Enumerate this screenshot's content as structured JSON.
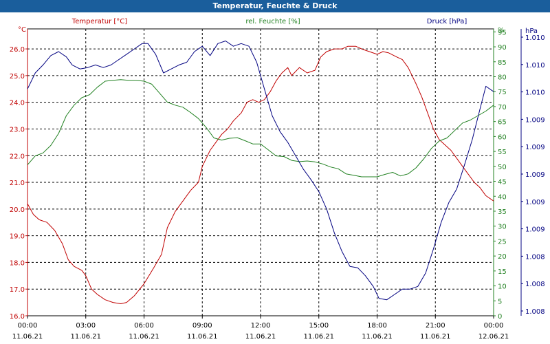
{
  "window": {
    "title": "Temperatur, Feuchte & Druck"
  },
  "colors": {
    "temp": "#c00000",
    "hum": "#208020",
    "press": "#000080",
    "grid": "#000000",
    "title_bg": "#1a5e9c"
  },
  "chart_data": {
    "type": "line",
    "title": "Temperatur, Feuchte & Druck",
    "grid": true,
    "x_ticks": [
      {
        "time": "00:00",
        "date": "11.06.21",
        "h": 0
      },
      {
        "time": "03:00",
        "date": "11.06.21",
        "h": 3
      },
      {
        "time": "06:00",
        "date": "11.06.21",
        "h": 6
      },
      {
        "time": "09:00",
        "date": "11.06.21",
        "h": 9
      },
      {
        "time": "12:00",
        "date": "11.06.21",
        "h": 12
      },
      {
        "time": "15:00",
        "date": "11.06.21",
        "h": 15
      },
      {
        "time": "18:00",
        "date": "11.06.21",
        "h": 18
      },
      {
        "time": "21:00",
        "date": "11.06.21",
        "h": 21
      },
      {
        "time": "00:00",
        "date": "12.06.21",
        "h": 24
      }
    ],
    "xlim": [
      0,
      24
    ],
    "axes": {
      "temp": {
        "label": "Temperatur [°C]",
        "unit": "°C",
        "min": 16.0,
        "max": 26.75,
        "ticks": [
          "16.0",
          "17.0",
          "18.0",
          "19.0",
          "20.0",
          "21.0",
          "22.0",
          "23.0",
          "24.0",
          "25.0",
          "26.0"
        ]
      },
      "hum": {
        "label": "rel. Feuchte [%]",
        "unit": "%",
        "min": 0,
        "max": 96,
        "ticks": [
          "0",
          "5",
          "10",
          "15",
          "20",
          "25",
          "30",
          "35",
          "40",
          "45",
          "50",
          "55",
          "60",
          "65",
          "70",
          "75",
          "80",
          "85",
          "90",
          "95"
        ]
      },
      "press": {
        "label": "Druck [hPa]",
        "unit": "hPa",
        "min": 1008.0,
        "max": 1010.15,
        "ticks": [
          "1.008",
          "1.008",
          "1.008",
          "1.009",
          "1.009",
          "1.009",
          "1.009",
          "1.009",
          "1.010",
          "1.010",
          "1.010"
        ]
      }
    },
    "series": [
      {
        "name": "Temperatur [°C]",
        "axis": "temp",
        "color": "#c00000",
        "points": [
          [
            0,
            20.2
          ],
          [
            0.3,
            19.8
          ],
          [
            0.6,
            19.6
          ],
          [
            1.0,
            19.5
          ],
          [
            1.4,
            19.2
          ],
          [
            1.8,
            18.7
          ],
          [
            2.1,
            18.1
          ],
          [
            2.4,
            17.85
          ],
          [
            2.8,
            17.7
          ],
          [
            3.0,
            17.5
          ],
          [
            3.3,
            17.0
          ],
          [
            3.6,
            16.8
          ],
          [
            4.0,
            16.6
          ],
          [
            4.4,
            16.5
          ],
          [
            4.8,
            16.45
          ],
          [
            5.1,
            16.5
          ],
          [
            5.5,
            16.75
          ],
          [
            6.0,
            17.2
          ],
          [
            6.5,
            17.8
          ],
          [
            6.9,
            18.3
          ],
          [
            7.2,
            19.3
          ],
          [
            7.6,
            19.9
          ],
          [
            8.0,
            20.3
          ],
          [
            8.4,
            20.7
          ],
          [
            8.8,
            21.0
          ],
          [
            9.0,
            21.6
          ],
          [
            9.4,
            22.2
          ],
          [
            9.7,
            22.5
          ],
          [
            10.0,
            22.8
          ],
          [
            10.3,
            23.0
          ],
          [
            10.6,
            23.3
          ],
          [
            11.0,
            23.6
          ],
          [
            11.3,
            24.0
          ],
          [
            11.6,
            24.1
          ],
          [
            11.9,
            24.0
          ],
          [
            12.2,
            24.1
          ],
          [
            12.5,
            24.4
          ],
          [
            12.8,
            24.8
          ],
          [
            13.1,
            25.1
          ],
          [
            13.4,
            25.3
          ],
          [
            13.6,
            25.0
          ],
          [
            14.0,
            25.3
          ],
          [
            14.4,
            25.1
          ],
          [
            14.8,
            25.2
          ],
          [
            15.1,
            25.7
          ],
          [
            15.4,
            25.9
          ],
          [
            15.8,
            26.0
          ],
          [
            16.2,
            26.0
          ],
          [
            16.5,
            26.1
          ],
          [
            16.9,
            26.1
          ],
          [
            17.2,
            26.0
          ],
          [
            17.6,
            25.9
          ],
          [
            18.0,
            25.8
          ],
          [
            18.3,
            25.9
          ],
          [
            18.6,
            25.85
          ],
          [
            19.0,
            25.7
          ],
          [
            19.3,
            25.6
          ],
          [
            19.6,
            25.3
          ],
          [
            20.0,
            24.7
          ],
          [
            20.3,
            24.2
          ],
          [
            20.6,
            23.6
          ],
          [
            20.9,
            23.0
          ],
          [
            21.2,
            22.6
          ],
          [
            21.5,
            22.4
          ],
          [
            21.8,
            22.2
          ],
          [
            22.1,
            21.9
          ],
          [
            22.4,
            21.6
          ],
          [
            22.7,
            21.3
          ],
          [
            23.0,
            21.0
          ],
          [
            23.3,
            20.8
          ],
          [
            23.6,
            20.5
          ],
          [
            24.0,
            20.3
          ]
        ]
      },
      {
        "name": "rel. Feuchte [%]",
        "axis": "hum",
        "color": "#208020",
        "points": [
          [
            0,
            50.5
          ],
          [
            0.4,
            53.5
          ],
          [
            0.8,
            54.5
          ],
          [
            1.2,
            57
          ],
          [
            1.6,
            61
          ],
          [
            2.0,
            67
          ],
          [
            2.4,
            70.5
          ],
          [
            2.8,
            73
          ],
          [
            3.2,
            74
          ],
          [
            3.6,
            76.5
          ],
          [
            4.0,
            78.5
          ],
          [
            4.4,
            78.8
          ],
          [
            4.8,
            79.0
          ],
          [
            5.2,
            78.8
          ],
          [
            5.6,
            78.8
          ],
          [
            6.0,
            78.5
          ],
          [
            6.4,
            77.5
          ],
          [
            6.8,
            74.5
          ],
          [
            7.2,
            71.5
          ],
          [
            7.6,
            70.5
          ],
          [
            8.0,
            69.8
          ],
          [
            8.4,
            68.0
          ],
          [
            8.8,
            66.0
          ],
          [
            9.2,
            63.0
          ],
          [
            9.6,
            59.5
          ],
          [
            10.0,
            58.8
          ],
          [
            10.4,
            59.4
          ],
          [
            10.8,
            59.6
          ],
          [
            11.2,
            58.6
          ],
          [
            11.6,
            57.5
          ],
          [
            12.0,
            57.5
          ],
          [
            12.4,
            55.5
          ],
          [
            12.8,
            53.5
          ],
          [
            13.2,
            53.3
          ],
          [
            13.6,
            52.0
          ],
          [
            14.0,
            51.6
          ],
          [
            14.4,
            51.8
          ],
          [
            14.8,
            51.5
          ],
          [
            15.2,
            50.8
          ],
          [
            15.6,
            49.8
          ],
          [
            16.0,
            49.2
          ],
          [
            16.4,
            47.5
          ],
          [
            16.8,
            47.0
          ],
          [
            17.2,
            46.5
          ],
          [
            17.6,
            46.5
          ],
          [
            18.0,
            46.5
          ],
          [
            18.4,
            47.3
          ],
          [
            18.8,
            48.0
          ],
          [
            19.2,
            46.8
          ],
          [
            19.6,
            47.5
          ],
          [
            20.0,
            49.5
          ],
          [
            20.4,
            52.5
          ],
          [
            20.8,
            56.0
          ],
          [
            21.2,
            58.5
          ],
          [
            21.6,
            59.5
          ],
          [
            22.0,
            62.0
          ],
          [
            22.4,
            64.5
          ],
          [
            22.8,
            65.5
          ],
          [
            23.2,
            67.0
          ],
          [
            23.6,
            68.5
          ],
          [
            24.0,
            70.5
          ]
        ]
      },
      {
        "name": "Druck [hPa]",
        "axis": "press",
        "color": "#000080",
        "points": [
          [
            0,
            1009.7
          ],
          [
            0.4,
            1009.82
          ],
          [
            0.8,
            1009.88
          ],
          [
            1.2,
            1009.95
          ],
          [
            1.6,
            1009.98
          ],
          [
            2.0,
            1009.94
          ],
          [
            2.3,
            1009.88
          ],
          [
            2.7,
            1009.85
          ],
          [
            3.1,
            1009.86
          ],
          [
            3.5,
            1009.88
          ],
          [
            3.9,
            1009.86
          ],
          [
            4.3,
            1009.88
          ],
          [
            4.7,
            1009.92
          ],
          [
            5.1,
            1009.96
          ],
          [
            5.5,
            1010.0
          ],
          [
            5.9,
            1010.04
          ],
          [
            6.2,
            1010.04
          ],
          [
            6.6,
            1009.96
          ],
          [
            7.0,
            1009.82
          ],
          [
            7.4,
            1009.85
          ],
          [
            7.8,
            1009.88
          ],
          [
            8.2,
            1009.9
          ],
          [
            8.6,
            1009.98
          ],
          [
            9.0,
            1010.02
          ],
          [
            9.4,
            1009.95
          ],
          [
            9.8,
            1010.04
          ],
          [
            10.2,
            1010.06
          ],
          [
            10.6,
            1010.02
          ],
          [
            11.0,
            1010.04
          ],
          [
            11.4,
            1010.02
          ],
          [
            11.8,
            1009.9
          ],
          [
            12.2,
            1009.7
          ],
          [
            12.6,
            1009.5
          ],
          [
            13.0,
            1009.38
          ],
          [
            13.4,
            1009.3
          ],
          [
            13.8,
            1009.2
          ],
          [
            14.2,
            1009.1
          ],
          [
            14.6,
            1009.02
          ],
          [
            15.0,
            1008.93
          ],
          [
            15.4,
            1008.8
          ],
          [
            15.8,
            1008.62
          ],
          [
            16.2,
            1008.48
          ],
          [
            16.6,
            1008.37
          ],
          [
            17.0,
            1008.36
          ],
          [
            17.4,
            1008.3
          ],
          [
            17.8,
            1008.22
          ],
          [
            18.1,
            1008.13
          ],
          [
            18.5,
            1008.12
          ],
          [
            18.9,
            1008.16
          ],
          [
            19.3,
            1008.2
          ],
          [
            19.7,
            1008.2
          ],
          [
            20.1,
            1008.22
          ],
          [
            20.5,
            1008.32
          ],
          [
            20.9,
            1008.5
          ],
          [
            21.3,
            1008.7
          ],
          [
            21.7,
            1008.85
          ],
          [
            22.1,
            1008.95
          ],
          [
            22.5,
            1009.13
          ],
          [
            22.9,
            1009.32
          ],
          [
            23.3,
            1009.55
          ],
          [
            23.6,
            1009.72
          ],
          [
            24.0,
            1009.68
          ]
        ]
      }
    ]
  }
}
